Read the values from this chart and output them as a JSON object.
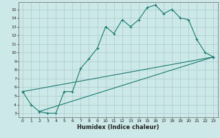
{
  "xlabel": "Humidex (Indice chaleur)",
  "line1_x": [
    0,
    1,
    2,
    3,
    4,
    5,
    6,
    7,
    8,
    9,
    10,
    11,
    12,
    13,
    14,
    15,
    16,
    17,
    18,
    19,
    20,
    21,
    22,
    23
  ],
  "line1_y": [
    5.5,
    4.0,
    3.2,
    3.0,
    3.0,
    5.5,
    5.5,
    8.2,
    9.3,
    10.5,
    13.0,
    12.2,
    13.8,
    13.0,
    13.8,
    15.2,
    15.5,
    14.5,
    15.0,
    14.0,
    13.8,
    11.5,
    10.0,
    9.5
  ],
  "line2_x": [
    0,
    23
  ],
  "line2_y": [
    5.5,
    9.5
  ],
  "line3_x": [
    2,
    23
  ],
  "line3_y": [
    3.2,
    9.5
  ],
  "line_color": "#1a7a6e",
  "bg_color": "#cce8e8",
  "grid_color": "#aacccc",
  "xlim": [
    -0.5,
    23.5
  ],
  "ylim": [
    2.5,
    15.8
  ],
  "yticks": [
    3,
    4,
    5,
    6,
    7,
    8,
    9,
    10,
    11,
    12,
    13,
    14,
    15
  ],
  "xticks": [
    0,
    1,
    2,
    3,
    4,
    5,
    6,
    7,
    8,
    9,
    10,
    11,
    12,
    13,
    14,
    15,
    16,
    17,
    18,
    19,
    20,
    21,
    22,
    23
  ],
  "marker": "+",
  "markersize": 3.5,
  "linewidth": 0.8,
  "tick_fontsize": 4.5,
  "xlabel_fontsize": 6.0
}
